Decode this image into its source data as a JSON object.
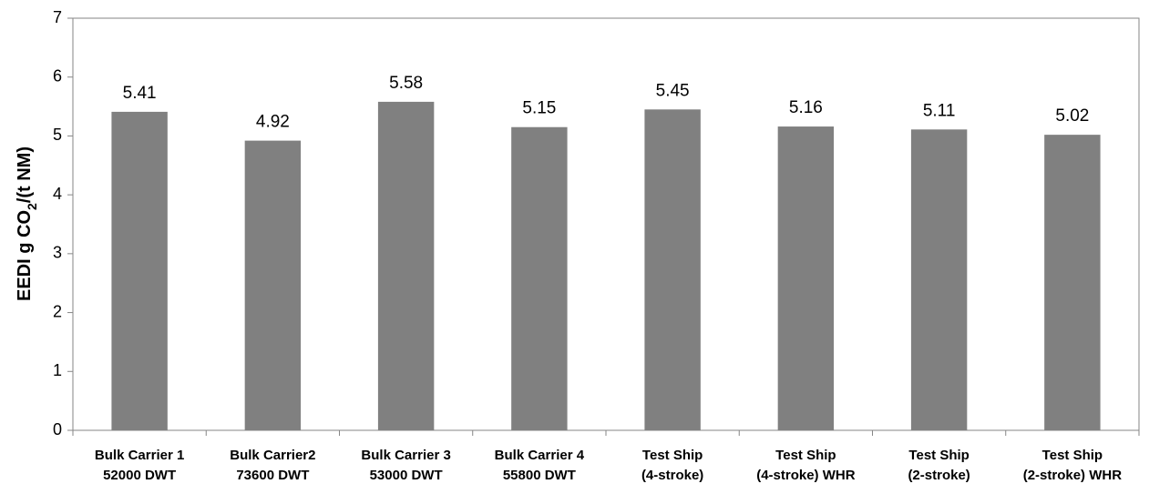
{
  "chart_data": {
    "type": "bar",
    "y_label": [
      "EEDI   g CO",
      "2",
      "/(t NM)"
    ],
    "categories": [
      [
        "Bulk Carrier 1",
        "52000 DWT"
      ],
      [
        "Bulk Carrier2",
        "73600 DWT"
      ],
      [
        "Bulk Carrier 3",
        "53000 DWT"
      ],
      [
        "Bulk Carrier 4",
        "55800 DWT"
      ],
      [
        "Test Ship",
        "(4-stroke)"
      ],
      [
        "Test Ship",
        "(4-stroke) WHR"
      ],
      [
        "Test Ship",
        "(2-stroke)"
      ],
      [
        "Test Ship",
        "(2-stroke) WHR"
      ]
    ],
    "values": [
      5.41,
      4.92,
      5.58,
      5.15,
      5.45,
      5.16,
      5.11,
      5.02
    ],
    "color": "#808080",
    "ylim": [
      0,
      7
    ],
    "yticks": [
      0,
      1,
      2,
      3,
      4,
      5,
      6,
      7
    ],
    "grid": false
  }
}
